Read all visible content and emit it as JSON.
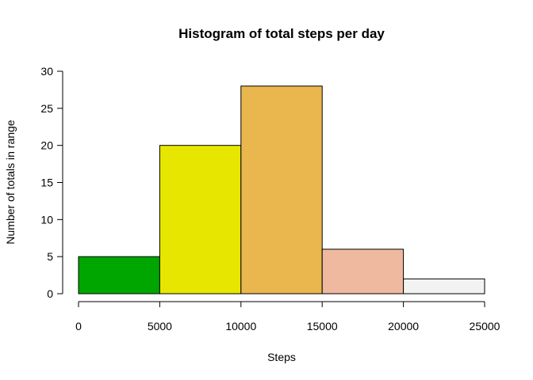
{
  "chart_data": {
    "type": "bar",
    "subtype": "histogram",
    "title": "Histogram of total steps per day",
    "xlabel": "Steps",
    "ylabel": "Number of totals in range",
    "xlim": [
      0,
      25000
    ],
    "ylim": [
      0,
      30
    ],
    "x_ticks": [
      "0",
      "5000",
      "10000",
      "15000",
      "20000",
      "25000"
    ],
    "y_ticks": [
      "0",
      "5",
      "10",
      "15",
      "20",
      "25",
      "30"
    ],
    "bins": [
      {
        "start": 0,
        "end": 5000,
        "value": 5,
        "color": "#00A600"
      },
      {
        "start": 5000,
        "end": 10000,
        "value": 20,
        "color": "#E6E600"
      },
      {
        "start": 10000,
        "end": 15000,
        "value": 28,
        "color": "#EAB64E"
      },
      {
        "start": 15000,
        "end": 20000,
        "value": 6,
        "color": "#EEB99F"
      },
      {
        "start": 20000,
        "end": 25000,
        "value": 2,
        "color": "#F2F2F2"
      }
    ],
    "grid": false,
    "legend": "none"
  }
}
